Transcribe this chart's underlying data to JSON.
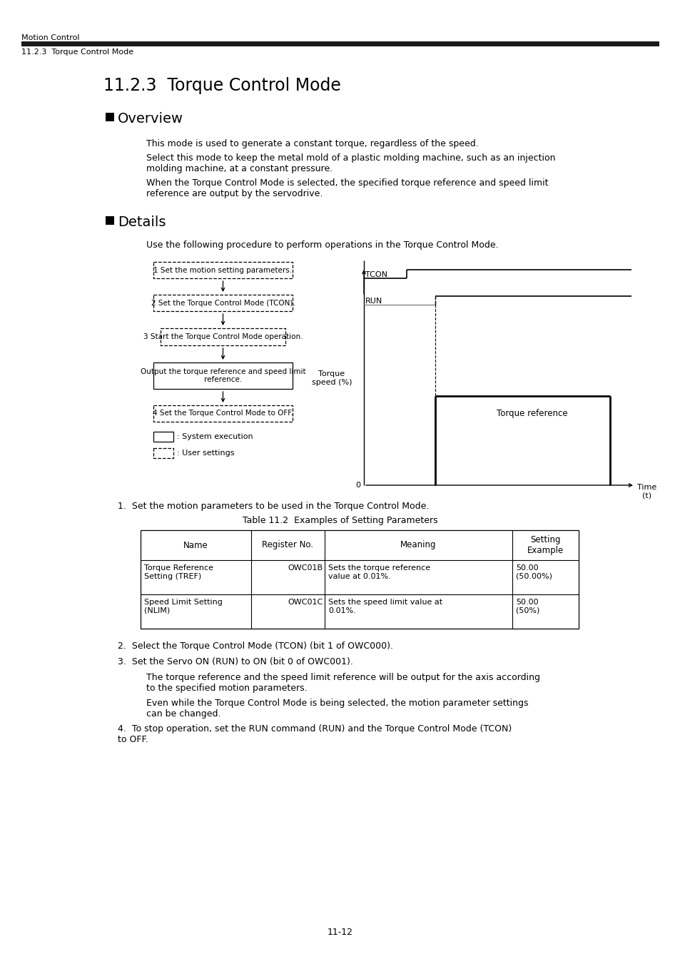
{
  "page_header_top": "Motion Control",
  "page_header_bot": "11.2.3  Torque Control Mode",
  "section_title": "11.2.3  Torque Control Mode",
  "overview_p1": "This mode is used to generate a constant torque, regardless of the speed.",
  "overview_p2": "Select this mode to keep the metal mold of a plastic molding machine, such as an injection\nmolding machine, at a constant pressure.",
  "overview_p3": "When the Torque Control Mode is selected, the specified torque reference and speed limit\nreference are output by the servodrive.",
  "details_intro": "Use the following procedure to perform operations in the Torque Control Mode.",
  "flow_steps": [
    "1 Set the motion setting parameters.",
    "2 Set the Torque Control Mode (TCON).",
    "3 Start the Torque Control Mode operation.",
    "Output the torque reference and speed limit\nreference.",
    "4 Set the Torque Control Mode to OFF."
  ],
  "dashed_flags": [
    true,
    true,
    true,
    false,
    true
  ],
  "legend_solid": ": System execution",
  "legend_dashed": ": User settings",
  "tcon_label": "TCON",
  "run_label": "RUN",
  "y_label": "Torque\nspeed (%)",
  "torque_ref_label": "Torque reference",
  "zero_label": "0",
  "time_label": "Time\n(t)",
  "table_title": "Table 11.2  Examples of Setting Parameters",
  "table_headers": [
    "Name",
    "Register No.",
    "Meaning",
    "Setting\nExample"
  ],
  "table_rows": [
    [
      "Torque Reference\nSetting (TREF)",
      "OWC01B",
      "Sets the torque reference\nvalue at 0.01%.",
      "50.00\n(50.00%)"
    ],
    [
      "Speed Limit Setting\n(NLIM)",
      "OWC01C",
      "Sets the speed limit value at\n0.01%.",
      "50.00\n(50%)"
    ]
  ],
  "item1": "Set the motion parameters to be used in the Torque Control Mode.",
  "item2": "Select the Torque Control Mode (TCON) (bit 1 of OWC000).",
  "item3": "Set the Servo ON (RUN) to ON (bit 0 of OWC001).",
  "item4": "To stop operation, set the RUN command (RUN) and the Torque Control Mode (TCON)\nto OFF.",
  "indent1": "The torque reference and the speed limit reference will be output for the axis according\nto the specified motion parameters.",
  "indent2": "Even while the Torque Control Mode is being selected, the motion parameter settings\ncan be changed.",
  "page_number": "11-12"
}
